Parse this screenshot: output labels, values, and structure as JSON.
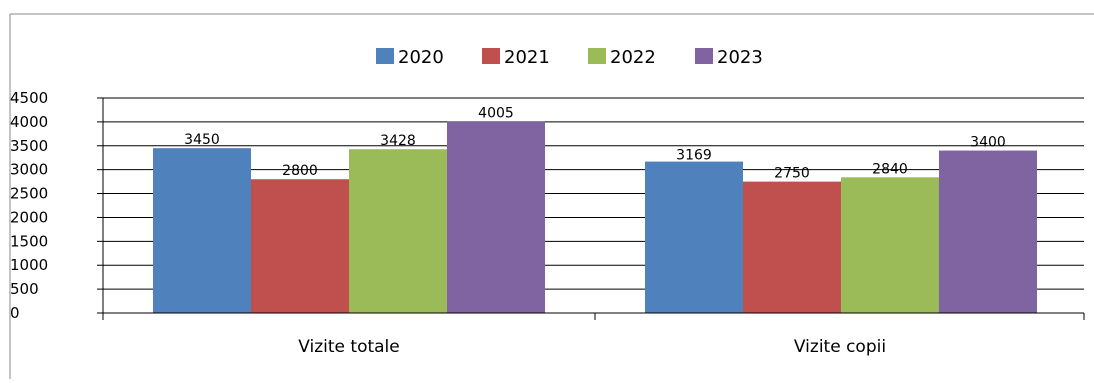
{
  "chart_data": {
    "type": "bar",
    "title": "",
    "xlabel": "",
    "ylabel": "",
    "categories": [
      "Vizite totale",
      "Vizite copii"
    ],
    "series": [
      {
        "name": "2020",
        "values": [
          3450,
          3169
        ],
        "color": "#4f81bd"
      },
      {
        "name": "2021",
        "values": [
          2800,
          2750
        ],
        "color": "#c0504d"
      },
      {
        "name": "2022",
        "values": [
          3428,
          2840
        ],
        "color": "#9bbb59"
      },
      {
        "name": "2023",
        "values": [
          4005,
          3400
        ],
        "color": "#8064a2"
      }
    ],
    "ylim": [
      0,
      4500
    ],
    "yticks": [
      0,
      500,
      1000,
      1500,
      2000,
      2500,
      3000,
      3500,
      4000,
      4500
    ],
    "grid": true,
    "legend_position": "top-center",
    "data_labels": true
  }
}
